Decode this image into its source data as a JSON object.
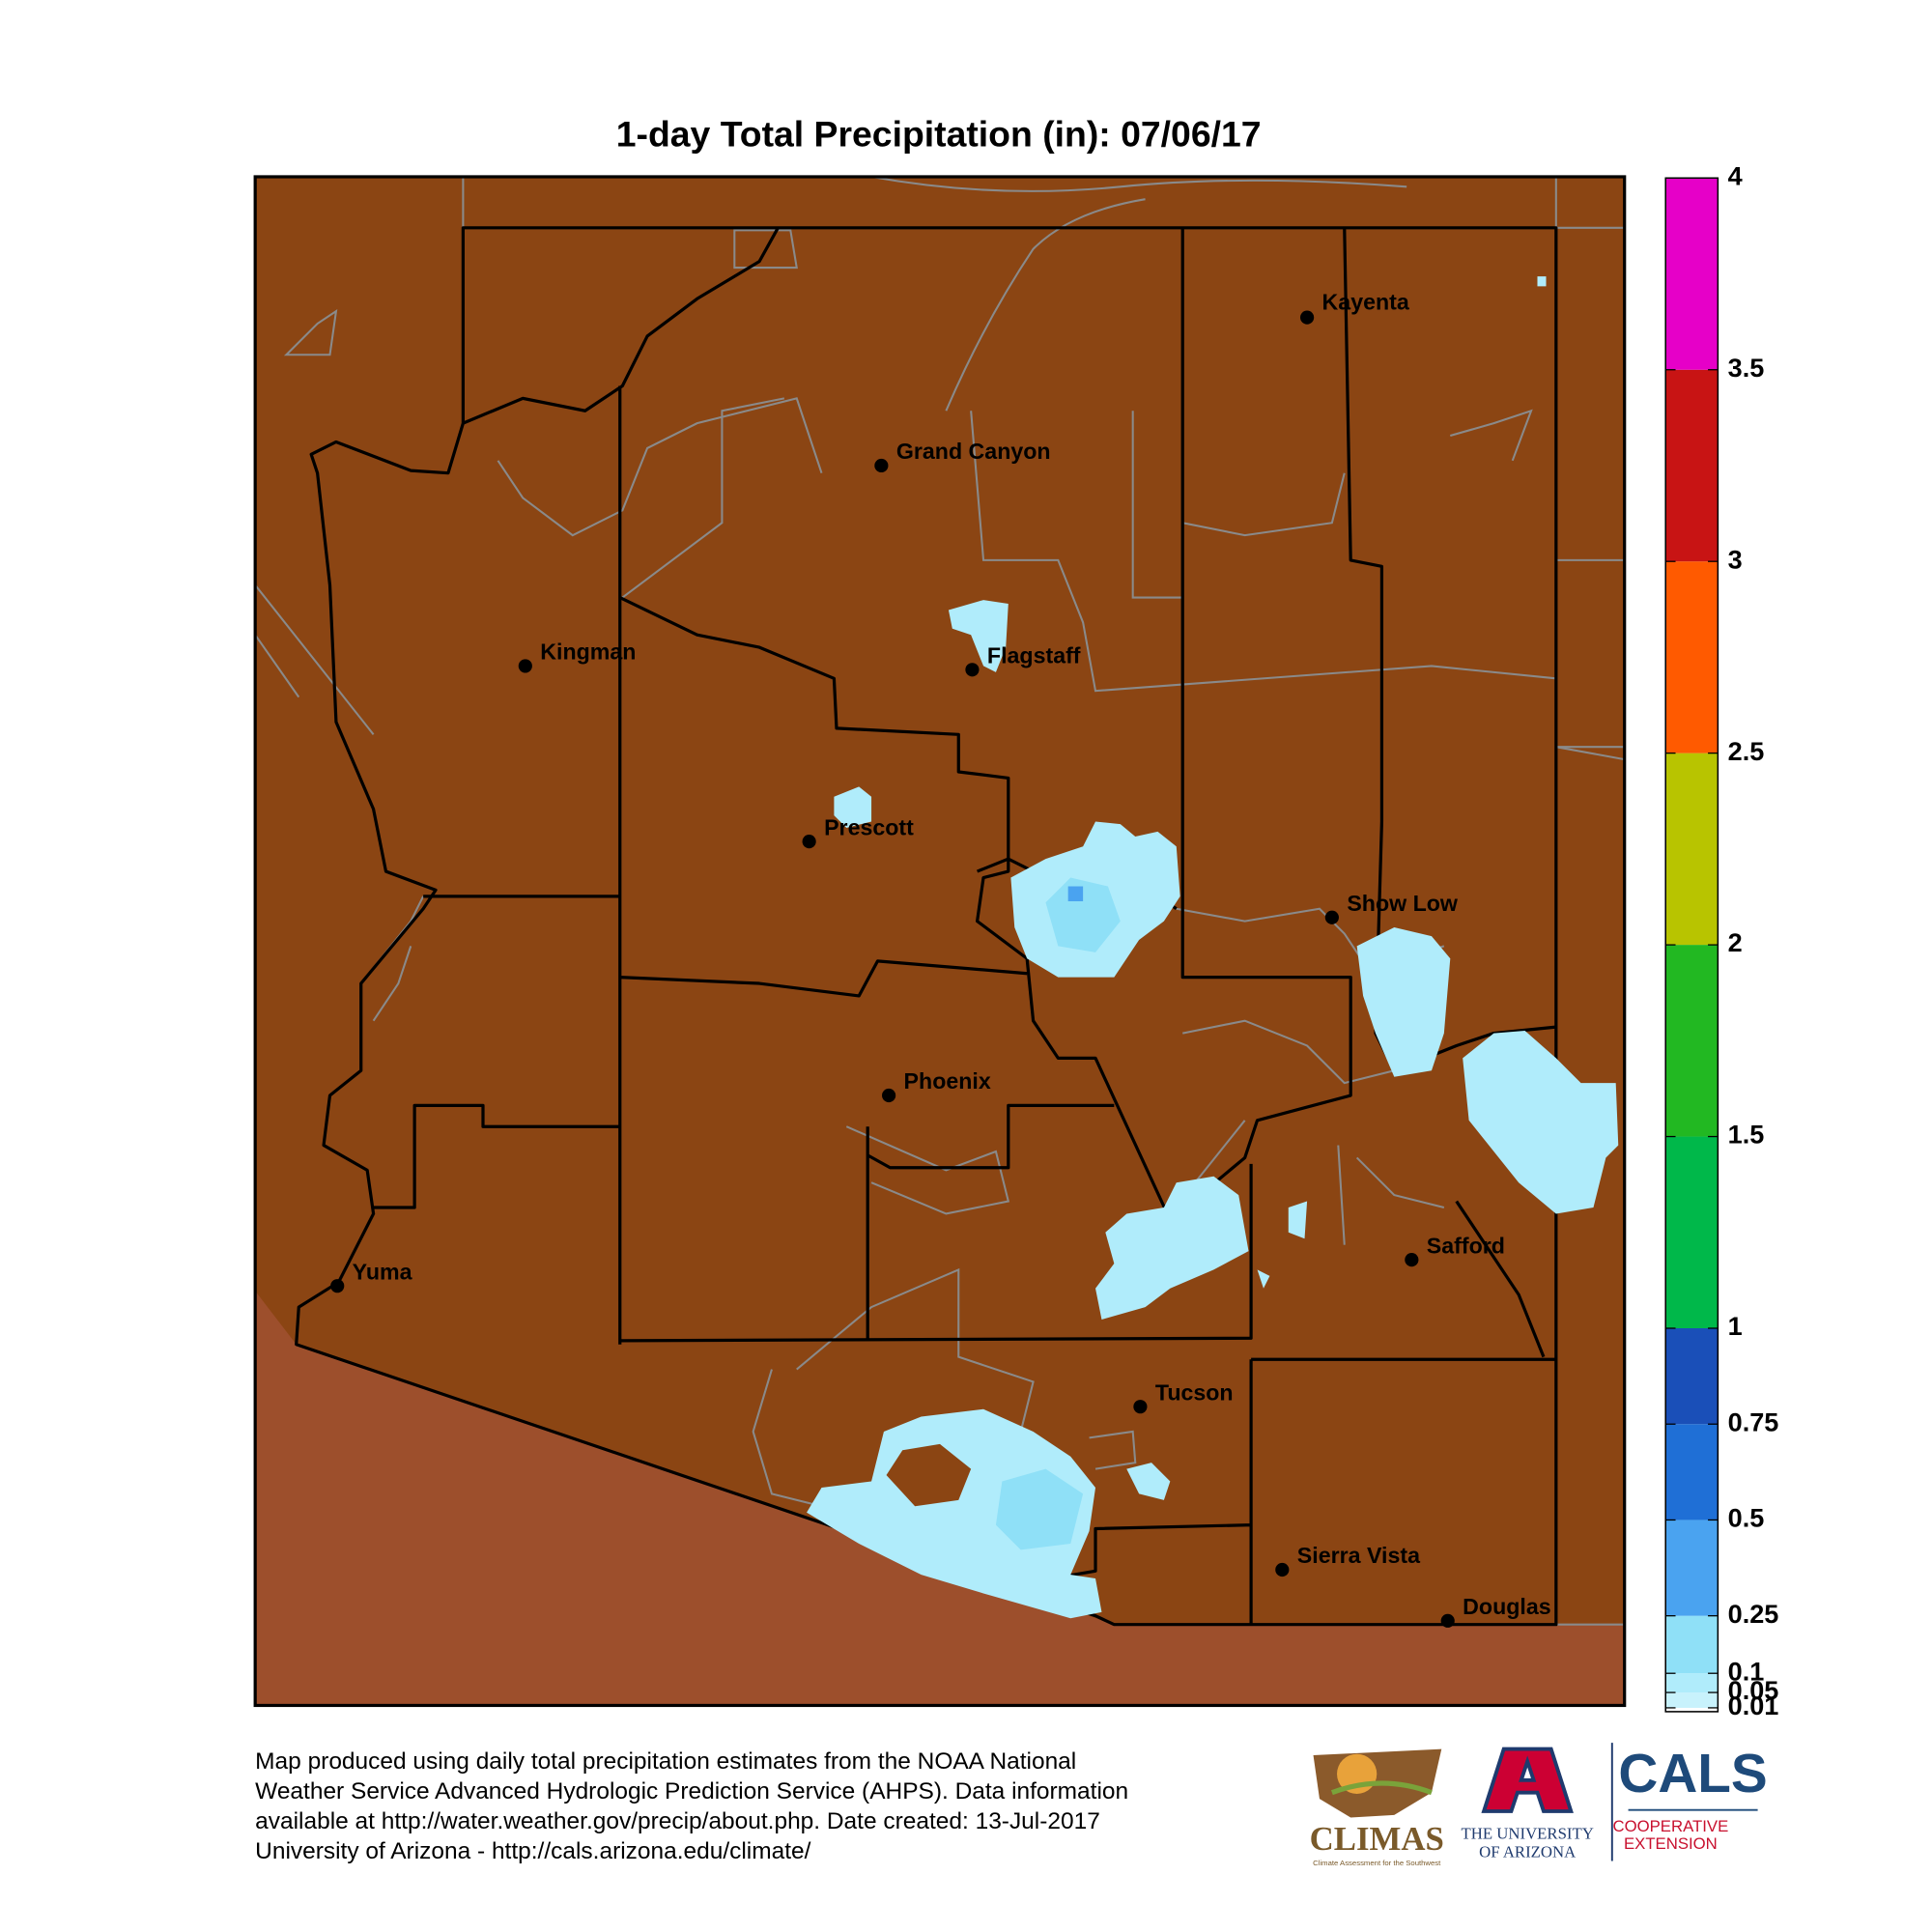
{
  "title": "1-day Total Precipitation (in): 07/06/17",
  "cities": [
    "Kayenta",
    "Grand Canyon",
    "Kingman",
    "Flagstaff",
    "Prescott",
    "Show Low",
    "Phoenix",
    "Yuma",
    "Safford",
    "Tucson",
    "Sierra Vista",
    "Douglas"
  ],
  "colorbar": {
    "lim": [
      0,
      4
    ],
    "ticks": [
      0.01,
      0.05,
      0.1,
      0.25,
      0.5,
      0.75,
      1,
      1.5,
      2,
      2.5,
      3,
      3.5,
      4
    ],
    "colors": [
      "#c8f2fc",
      "#b0ecfb",
      "#8fe0f7",
      "#4aa3f0",
      "#1f6fd6",
      "#1a4fb8",
      "#00b84a",
      "#22b822",
      "#b8c400",
      "#ff5a00",
      "#c81414",
      "#e600c8",
      "#ffffff"
    ]
  },
  "footer": [
    "Map produced using daily total precipitation estimates from the NOAA National",
    "Weather Service Advanced Hydrologic Prediction Service (AHPS). Data information",
    "available at http://water.weather.gov/precip/about.php. Date created: 13-Jul-2017",
    "University of Arizona - http://cals.arizona.edu/climate/"
  ],
  "logos": {
    "climas": "CLIMAS",
    "climas_sub": "Climate Assessment for the Southwest",
    "ua": [
      "THE UNIVERSITY",
      "OF ARIZONA"
    ],
    "cals": "CALS",
    "cals_sub": [
      "COOPERATIVE",
      "EXTENSION"
    ]
  }
}
